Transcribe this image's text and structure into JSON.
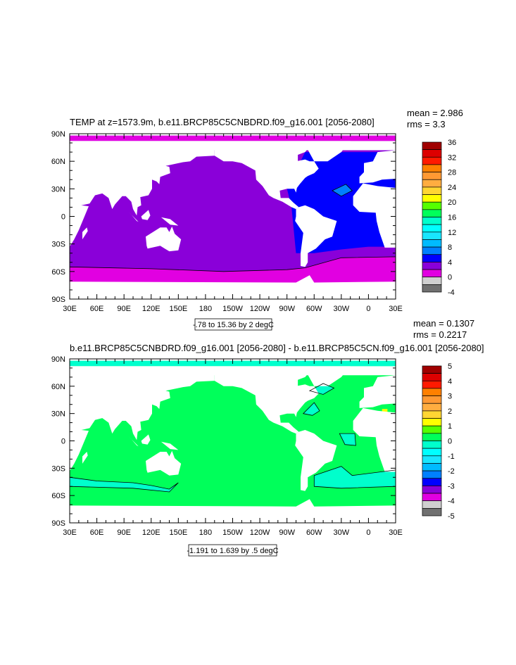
{
  "chart_data": [
    {
      "type": "heatmap",
      "title": "TEMP at z=1573.9m, b.e11.BRCP85C5CNBDRD.f09_g16.001 [2056-2080]",
      "stats": {
        "mean": "mean = 2.986",
        "rms": "rms = 3.3"
      },
      "contour_info": "-.78 to 15.36 by 2 degC",
      "x_tick_labels": [
        "30E",
        "60E",
        "90E",
        "120E",
        "150E",
        "180",
        "150W",
        "120W",
        "90W",
        "60W",
        "30W",
        "0",
        "30E"
      ],
      "y_tick_labels": [
        "90N",
        "60N",
        "30N",
        "0",
        "30S",
        "60S",
        "90S"
      ],
      "colorbar": {
        "levels_labeled": [
          "36",
          "32",
          "28",
          "24",
          "20",
          "16",
          "12",
          "8",
          "4",
          "0",
          "-4"
        ],
        "range": [
          -4,
          36
        ],
        "step": 2
      }
    },
    {
      "type": "heatmap",
      "title": "b.e11.BRCP85C5CNBDRD.f09_g16.001 [2056-2080] - b.e11.BRCP85C5CN.f09_g16.001 [2056-2080]",
      "stats": {
        "mean": "mean = 0.1307",
        "rms": "rms = 0.2217"
      },
      "contour_info": "-1.191 to 1.639 by .5 degC",
      "x_tick_labels": [
        "30E",
        "60E",
        "90E",
        "120E",
        "150E",
        "180",
        "150W",
        "120W",
        "90W",
        "60W",
        "30W",
        "0",
        "30E"
      ],
      "y_tick_labels": [
        "90N",
        "60N",
        "30N",
        "0",
        "30S",
        "60S",
        "90S"
      ],
      "colorbar": {
        "levels_labeled": [
          "5",
          "4",
          "3",
          "2",
          "1",
          "0",
          "-1",
          "-2",
          "-3",
          "-4",
          "-5"
        ],
        "range": [
          -5,
          5
        ],
        "step": 0.5
      }
    }
  ],
  "colors": [
    "#a00000",
    "#dd0000",
    "#ff1a00",
    "#ff8000",
    "#ff9933",
    "#ffad40",
    "#ffd633",
    "#ffff00",
    "#55ff00",
    "#00ff5a",
    "#00ffcc",
    "#00ffff",
    "#19e6ff",
    "#00bbff",
    "#0080ff",
    "#0000ff",
    "#8a00d9",
    "#e100e1",
    "#d0d0d0",
    "#707070"
  ]
}
